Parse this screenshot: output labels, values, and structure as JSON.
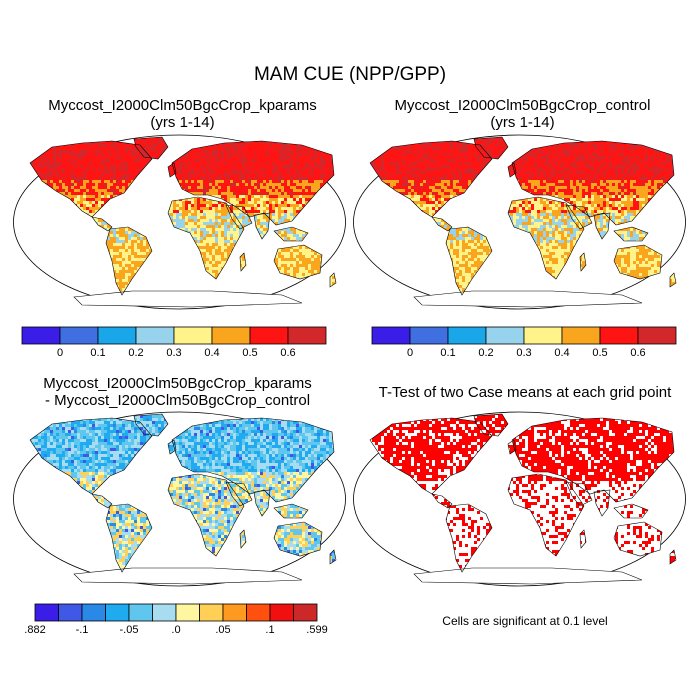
{
  "title": "MAM CUE (NPP/GPP)",
  "panels": [
    {
      "id": "kparams",
      "title_lines": [
        "Myccost_I2000Clm50BgcCrop_kparams",
        "(yrs 1-14)"
      ],
      "field": "cue-absolute"
    },
    {
      "id": "control",
      "title_lines": [
        "Myccost_I2000Clm50BgcCrop_control",
        "(yrs 1-14)"
      ],
      "field": "cue-absolute"
    },
    {
      "id": "difference",
      "title_lines": [
        "Myccost_I2000Clm50BgcCrop_kparams",
        "- Myccost_I2000Clm50BgcCrop_control"
      ],
      "field": "cue-difference"
    },
    {
      "id": "ttest",
      "title_lines": [
        "T-Test of two Case means at each grid point"
      ],
      "field": "significance-mask"
    }
  ],
  "colorbars": {
    "absolute": {
      "colors": [
        "#3a1ee8",
        "#3f6fe0",
        "#1aa7ea",
        "#97d3ec",
        "#fff38a",
        "#f9a61e",
        "#ff1414",
        "#d2282c"
      ],
      "labels": [
        "0",
        "0.1",
        "0.2",
        "0.3",
        "0.4",
        "0.5",
        "0.6"
      ]
    },
    "difference": {
      "colors": [
        "#3a1ee8",
        "#3f58e6",
        "#2a88e6",
        "#20aaf0",
        "#5fc6ee",
        "#a8dcf0",
        "#fff6a0",
        "#ffd055",
        "#ff9a20",
        "#ff5010",
        "#f01010",
        "#cc2828"
      ],
      "labels": [
        ".882",
        "-.1",
        "-.05",
        ".0",
        ".05",
        ".1",
        ".599"
      ]
    }
  },
  "significance_note": "Cells are significant at 0.1 level"
}
